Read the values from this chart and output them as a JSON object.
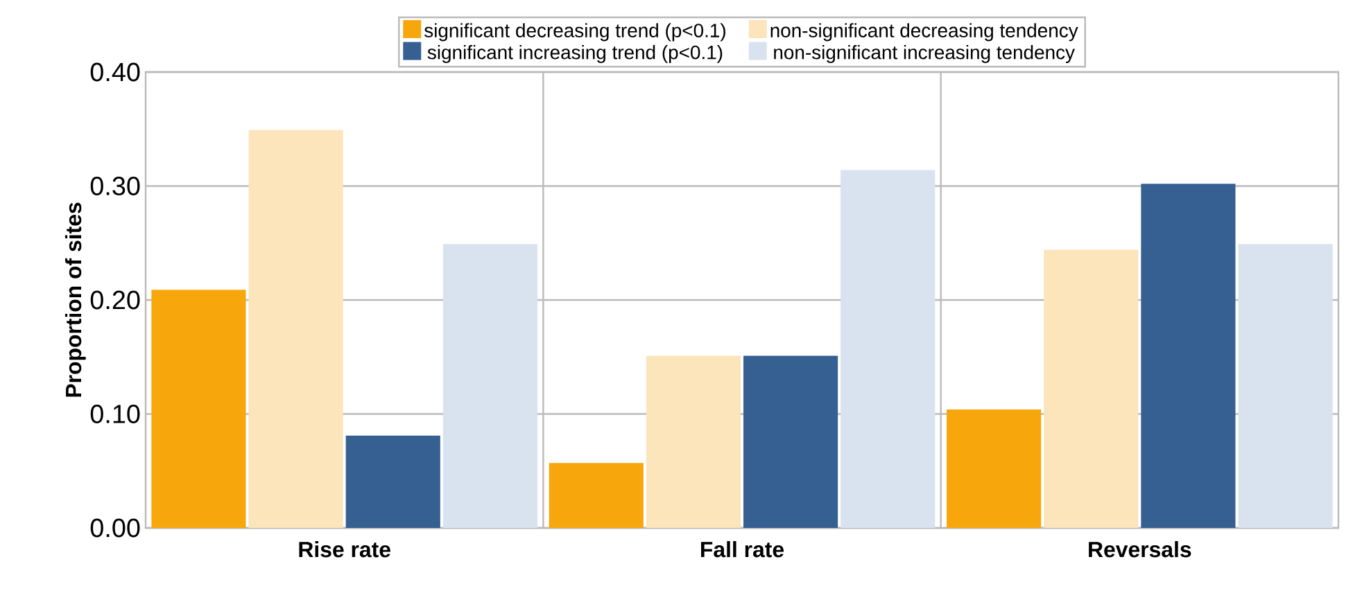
{
  "chart_data": {
    "type": "bar",
    "ylabel": "Proportion of sites",
    "categories": [
      "Rise rate",
      "Fall rate",
      "Reversals"
    ],
    "series": [
      {
        "name": "significant decreasing trend (p<0.1)",
        "color": "#f7a70c",
        "values": [
          0.209,
          0.057,
          0.104
        ]
      },
      {
        "name": "non-significant decreasing tendency",
        "color": "#fce4bb",
        "values": [
          0.349,
          0.151,
          0.244
        ]
      },
      {
        "name": "significant increasing trend (p<0.1)",
        "color": "#366092",
        "values": [
          0.081,
          0.151,
          0.302
        ]
      },
      {
        "name": "non-significant increasing tendency",
        "color": "#d8e3ef",
        "values": [
          0.249,
          0.314,
          0.249
        ]
      }
    ],
    "ylim": [
      0,
      0.4
    ],
    "yticks": [
      {
        "value": 0,
        "label": "0.00"
      },
      {
        "value": 0.1,
        "label": "0.10"
      },
      {
        "value": 0.2,
        "label": "0.20"
      },
      {
        "value": 0.3,
        "label": "0.30"
      },
      {
        "value": 0.4,
        "label": "0.40"
      }
    ],
    "grid": true,
    "legend": "top"
  }
}
